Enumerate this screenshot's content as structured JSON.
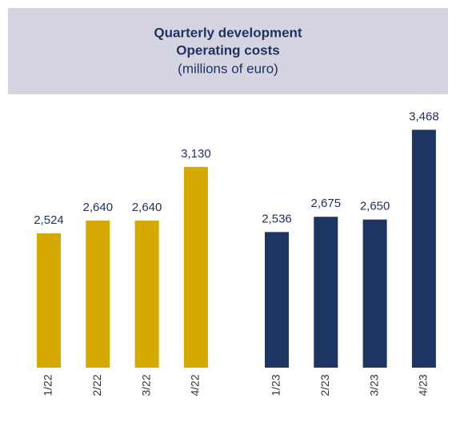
{
  "chart_data": {
    "type": "bar",
    "title": "Quarterly development",
    "subtitle": "Operating costs",
    "unit": "(millions of euro)",
    "ylim": [
      1300,
      3500
    ],
    "series": [
      {
        "color": "#d4a900",
        "categories": [
          "1/22",
          "2/22",
          "3/22",
          "4/22"
        ],
        "values": [
          2524,
          2640,
          2640,
          3130
        ],
        "value_labels": [
          "2,524",
          "2,640",
          "2,640",
          "3,130"
        ]
      },
      {
        "color": "#1e3461",
        "categories": [
          "1/23",
          "2/23",
          "3/23",
          "4/23"
        ],
        "values": [
          2536,
          2675,
          2650,
          3468
        ],
        "value_labels": [
          "2,536",
          "2,675",
          "2,650",
          "3,468"
        ]
      }
    ]
  }
}
